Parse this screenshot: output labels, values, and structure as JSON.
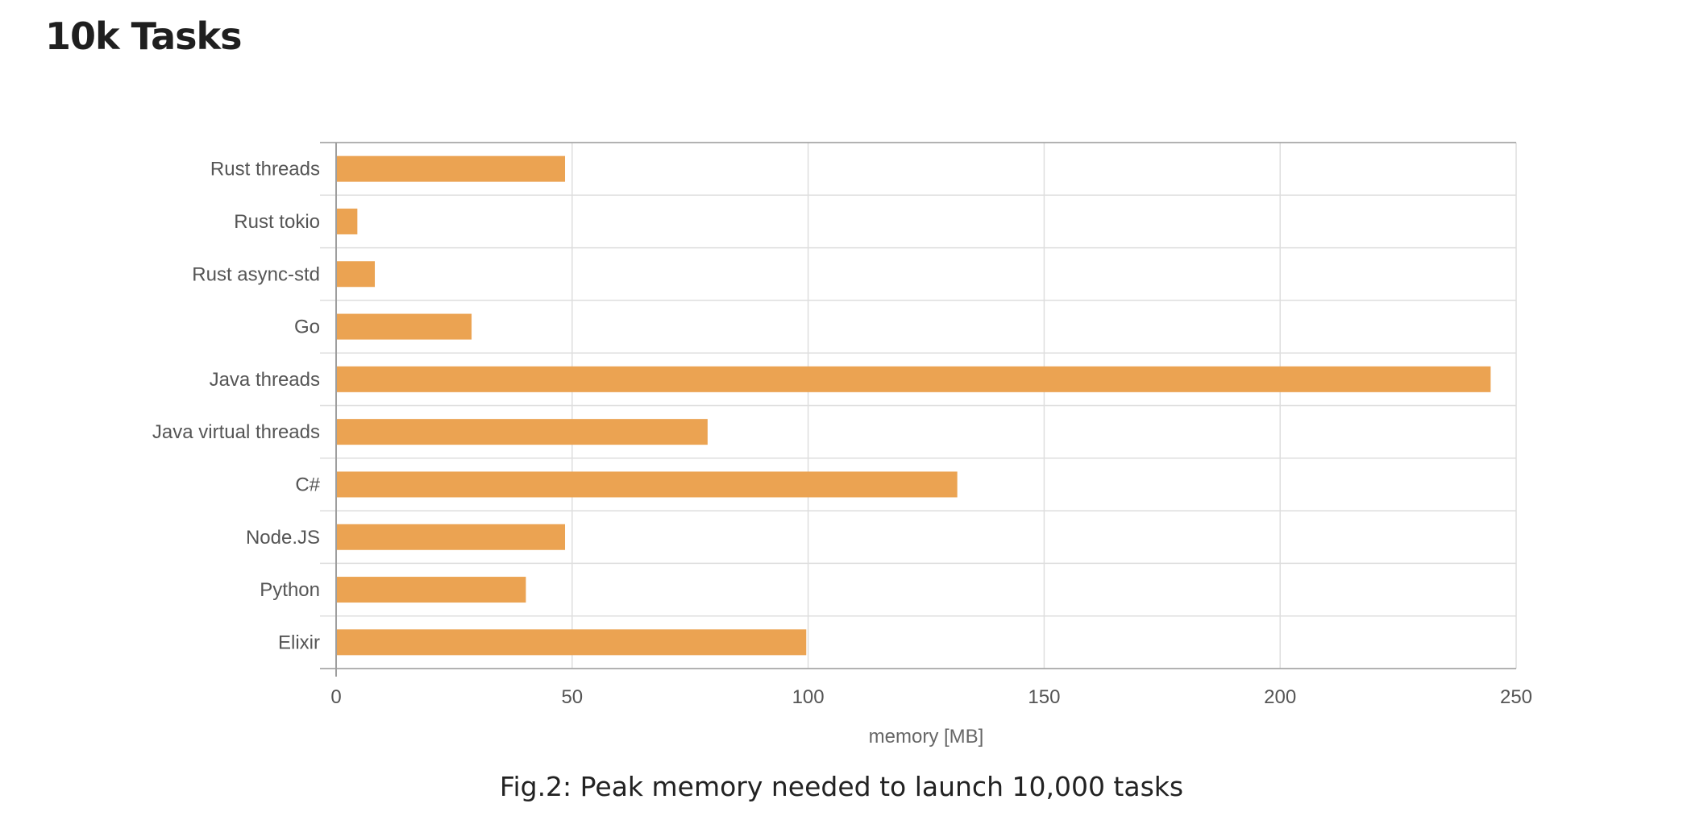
{
  "page": {
    "heading": "10k Tasks",
    "caption": "Fig.2: Peak memory needed to launch 10,000 tasks"
  },
  "chart_data": {
    "type": "bar",
    "orientation": "horizontal",
    "categories": [
      "Rust threads",
      "Rust tokio",
      "Rust async-std",
      "Go",
      "Java threads",
      "Java virtual threads",
      "C#",
      "Node.JS",
      "Python",
      "Elixir"
    ],
    "values": [
      48.5,
      4.5,
      8.2,
      28.7,
      244.6,
      78.7,
      131.6,
      48.5,
      40.2,
      99.6
    ],
    "xlabel": "memory [MB]",
    "ylabel": "",
    "xlim": [
      0,
      250
    ],
    "xticks": [
      0,
      50,
      100,
      150,
      200,
      250
    ],
    "grid": true,
    "legend": "none",
    "colors": {
      "bar": "#eba352",
      "grid": "#dedede",
      "axis": "#9e9e9e",
      "label": "#555555"
    }
  }
}
